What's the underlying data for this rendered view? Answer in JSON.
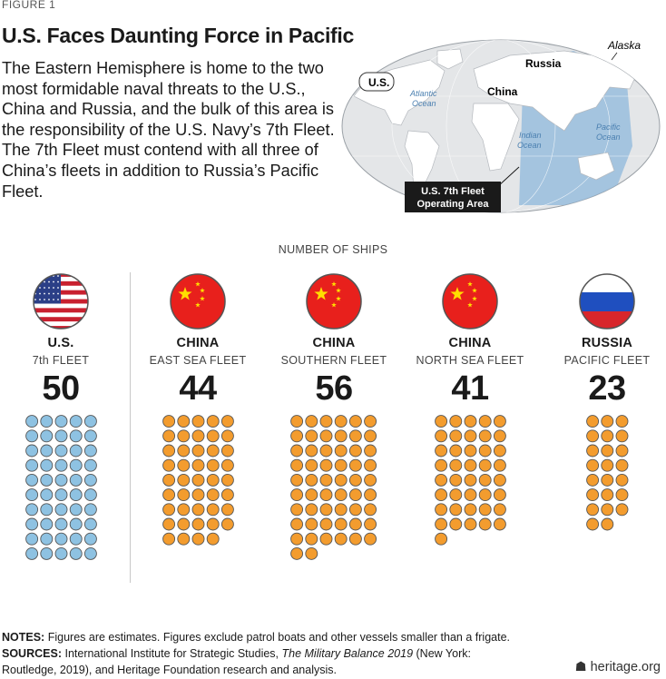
{
  "figure_label": "FIGURE 1",
  "title": "U.S. Faces Daunting Force in Pacific",
  "intro": "The Eastern Hemisphere is home to the two most formidable naval threats to the U.S., China and Russia, and the bulk of this area is the responsibility of the U.S. Navy’s 7th Fleet. The 7th Fleet must contend with all three of China’s fleets in addition to Russia’s Pacific Fleet.",
  "map": {
    "labels": {
      "alaska": "Alaska",
      "russia": "Russia",
      "us": "U.S.",
      "china": "China",
      "atlantic_1": "Atlantic",
      "atlantic_2": "Ocean",
      "indian_1": "Indian",
      "indian_2": "Ocean",
      "pacific_1": "Pacific",
      "pacific_2": "Ocean",
      "area_1": "U.S. 7th Fleet",
      "area_2": "Operating Area"
    },
    "colors": {
      "ocean": "#e4e6e8",
      "land": "#ffffff",
      "area": "#8fb8dc"
    }
  },
  "chart_heading": "NUMBER OF SHIPS",
  "chart_data": {
    "type": "pictograph",
    "series": [
      {
        "country": "U.S.",
        "fleet": "7th FLEET",
        "value": 50,
        "flag": "us-flag",
        "color": "#8ec2e2"
      },
      {
        "country": "CHINA",
        "fleet": "EAST SEA FLEET",
        "value": 44,
        "flag": "china-flag",
        "color": "#f39c2e"
      },
      {
        "country": "CHINA",
        "fleet": "SOUTHERN FLEET",
        "value": 56,
        "flag": "china-flag",
        "color": "#f39c2e"
      },
      {
        "country": "CHINA",
        "fleet": "NORTH SEA FLEET",
        "value": 41,
        "flag": "china-flag",
        "color": "#f39c2e"
      },
      {
        "country": "RUSSIA",
        "fleet": "PACIFIC FLEET",
        "value": 23,
        "flag": "russia-flag",
        "color": "#f39c2e"
      }
    ]
  },
  "notes": {
    "notes_label": "NOTES:",
    "notes_text": "Figures are estimates. Figures exclude patrol boats and other vessels smaller than a frigate.",
    "sources_label": "SOURCES:",
    "sources_pre": "International Institute for Strategic Studies,",
    "sources_title": "The Military Balance 2019",
    "sources_post": "(New York: Routledge, 2019), and Heritage Foundation research and analysis."
  },
  "credit": "heritage.org"
}
